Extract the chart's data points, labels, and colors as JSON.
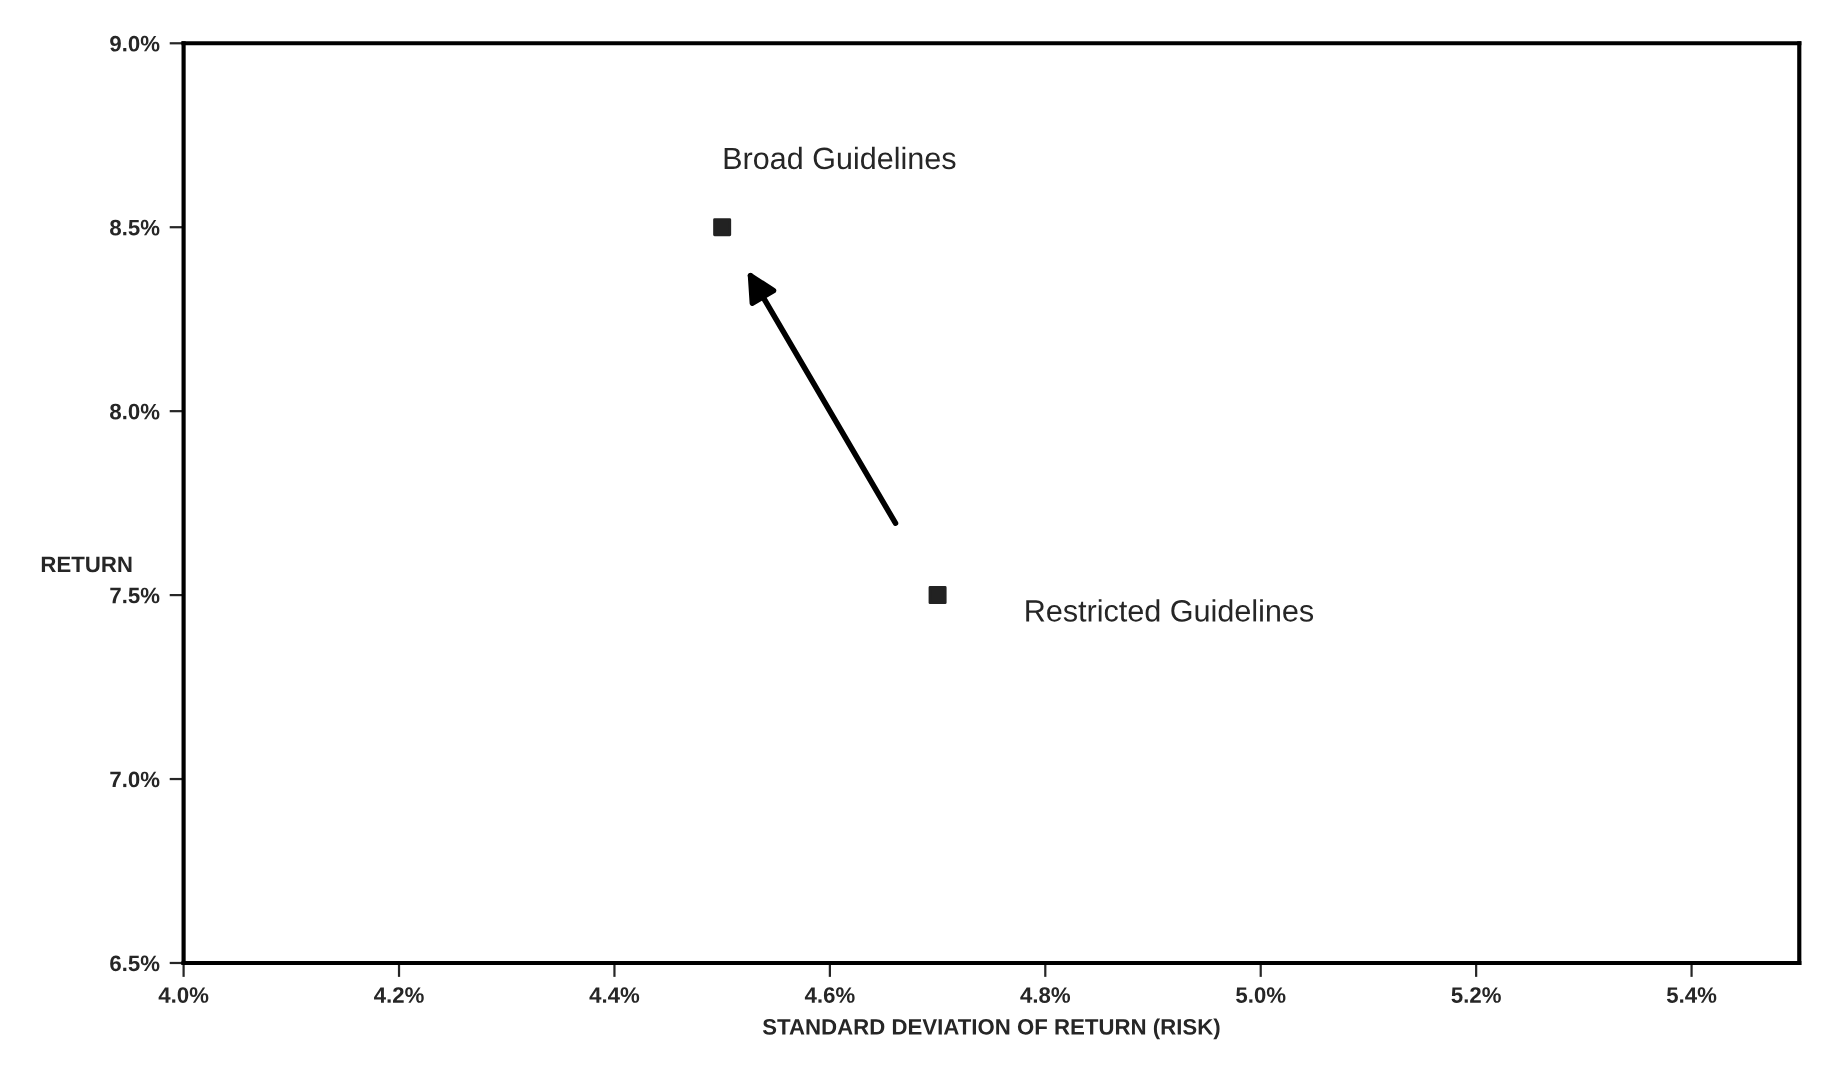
{
  "chart_data": {
    "type": "scatter",
    "xlabel": "STANDARD DEVIATION OF RETURN (RISK)",
    "ylabel": "RETURN",
    "x": [
      4.5,
      4.7
    ],
    "series": [
      {
        "color": "#222222",
        "values": [
          8.5,
          7.5
        ]
      }
    ],
    "marker": "square",
    "xlim": [
      4.0,
      5.5
    ],
    "ylim": [
      6.5,
      9.0
    ],
    "xticks": [
      {
        "value": 4.0,
        "label": "4.0%"
      },
      {
        "value": 4.2,
        "label": "4.2%"
      },
      {
        "value": 4.4,
        "label": "4.4%"
      },
      {
        "value": 4.6,
        "label": "4.6%"
      },
      {
        "value": 4.8,
        "label": "4.8%"
      },
      {
        "value": 5.0,
        "label": "5.0%"
      },
      {
        "value": 5.2,
        "label": "5.2%"
      },
      {
        "value": 5.4,
        "label": "5.4%"
      }
    ],
    "yticks": [
      {
        "value": 6.5,
        "label": "6.5%"
      },
      {
        "value": 7.0,
        "label": "7.0%"
      },
      {
        "value": 7.5,
        "label": "7.5%"
      },
      {
        "value": 8.0,
        "label": "8.0%"
      },
      {
        "value": 8.5,
        "label": "8.5%"
      },
      {
        "value": 9.0,
        "label": "9.0%"
      }
    ],
    "annotations": [
      {
        "text": "Broad Guidelines",
        "x": 4.5,
        "y": 8.5
      },
      {
        "text": "Restricted Guidelines",
        "x": 4.7,
        "y": 7.5
      }
    ],
    "grid": false,
    "legend": false
  }
}
